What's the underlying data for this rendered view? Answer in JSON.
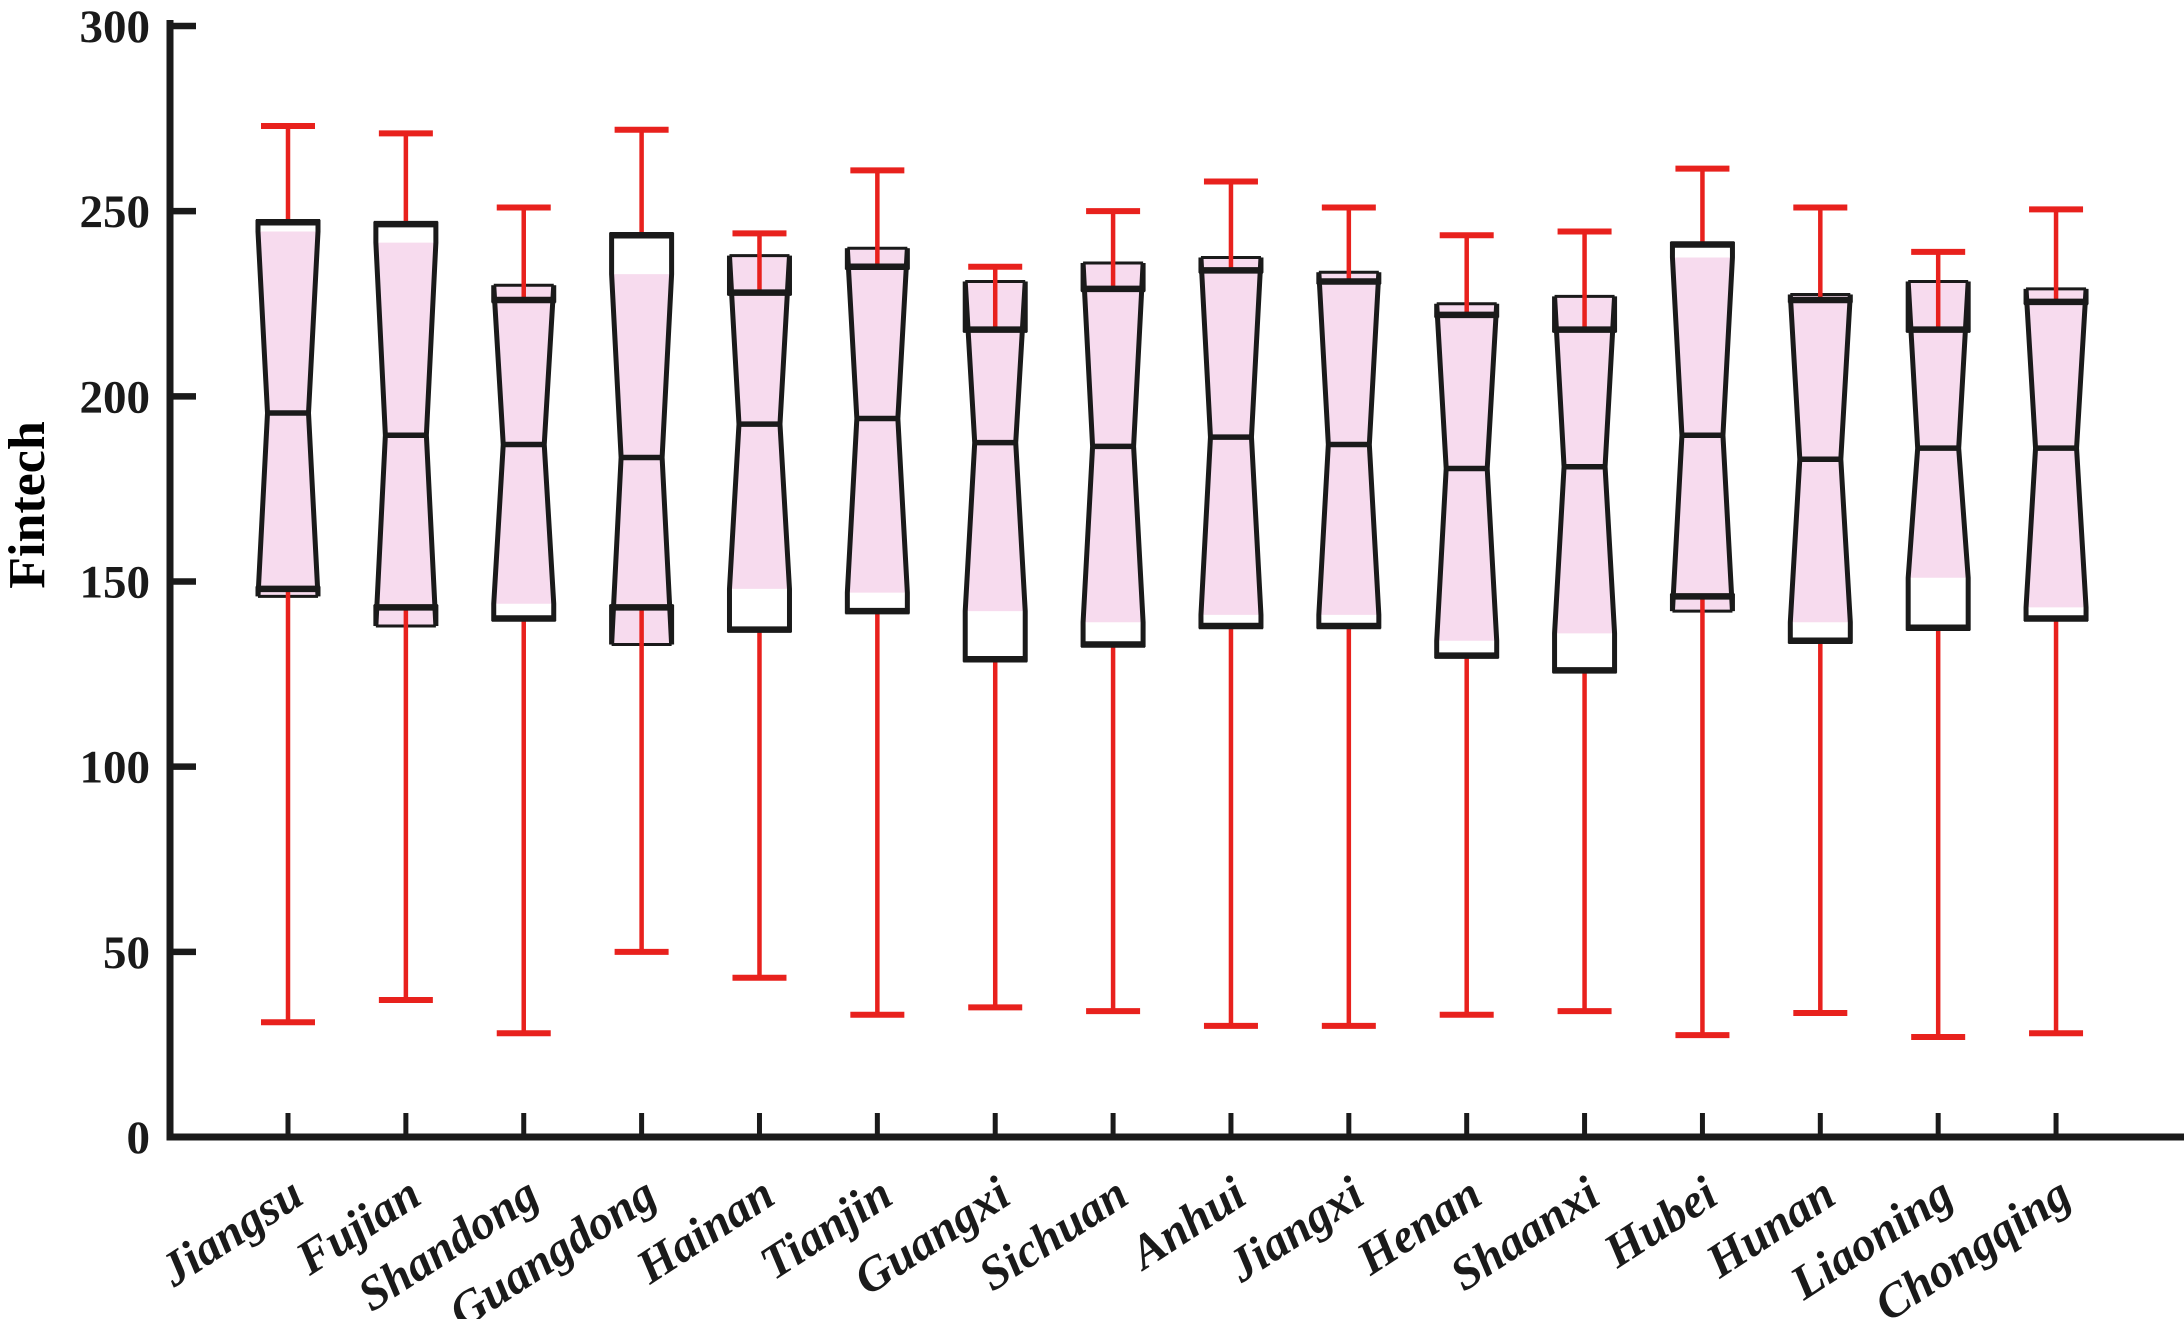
{
  "chart_data": {
    "type": "boxplot",
    "title": "",
    "ylabel": "Fintech",
    "xlabel": "",
    "ylim": [
      0,
      300
    ],
    "yticks": [
      0,
      50,
      100,
      150,
      200,
      250,
      300
    ],
    "grid": false,
    "legend_position": "none",
    "notched": true,
    "categories": [
      "Jiangsu",
      "Fujian",
      "Shandong",
      "Guangdong",
      "Hainan",
      "Tianjin",
      "Guangxi",
      "Sichuan",
      "Anhui",
      "Jiangxi",
      "Henan",
      "Shaanxi",
      "Hubei",
      "Hunan",
      "Liaoning",
      "Chongqing"
    ],
    "series": [
      {
        "name": "Jiangsu",
        "whisker_low": 31,
        "q1": 148,
        "notch_low": 146,
        "median": 195.5,
        "notch_high": 244.5,
        "q3": 247,
        "whisker_high": 273
      },
      {
        "name": "Fujian",
        "whisker_low": 37,
        "q1": 143,
        "notch_low": 138,
        "median": 189.5,
        "notch_high": 241.5,
        "q3": 246.5,
        "whisker_high": 271
      },
      {
        "name": "Shandong",
        "whisker_low": 28,
        "q1": 140,
        "notch_low": 144,
        "median": 187,
        "notch_high": 230,
        "q3": 226,
        "whisker_high": 251
      },
      {
        "name": "Guangdong",
        "whisker_low": 50,
        "q1": 143,
        "notch_low": 133,
        "median": 183.5,
        "notch_high": 233,
        "q3": 243.5,
        "whisker_high": 272
      },
      {
        "name": "Hainan",
        "whisker_low": 43,
        "q1": 137,
        "notch_low": 148,
        "median": 192.5,
        "notch_high": 238,
        "q3": 228,
        "whisker_high": 244
      },
      {
        "name": "Tianjin",
        "whisker_low": 33,
        "q1": 142,
        "notch_low": 147,
        "median": 194,
        "notch_high": 240,
        "q3": 235,
        "whisker_high": 261
      },
      {
        "name": "Guangxi",
        "whisker_low": 35,
        "q1": 129,
        "notch_low": 142,
        "median": 187.5,
        "notch_high": 231,
        "q3": 218,
        "whisker_high": 235
      },
      {
        "name": "Sichuan",
        "whisker_low": 34,
        "q1": 133,
        "notch_low": 139,
        "median": 186.5,
        "notch_high": 236,
        "q3": 229,
        "whisker_high": 250
      },
      {
        "name": "Anhui",
        "whisker_low": 30,
        "q1": 138,
        "notch_low": 141,
        "median": 189,
        "notch_high": 237.5,
        "q3": 234,
        "whisker_high": 258
      },
      {
        "name": "Jiangxi",
        "whisker_low": 30,
        "q1": 138,
        "notch_low": 141,
        "median": 187,
        "notch_high": 233.5,
        "q3": 231,
        "whisker_high": 251
      },
      {
        "name": "Henan",
        "whisker_low": 33,
        "q1": 130,
        "notch_low": 134,
        "median": 180.5,
        "notch_high": 225,
        "q3": 222,
        "whisker_high": 243.5
      },
      {
        "name": "Shaanxi",
        "whisker_low": 34,
        "q1": 126,
        "notch_low": 136,
        "median": 181,
        "notch_high": 227,
        "q3": 218,
        "whisker_high": 244.5
      },
      {
        "name": "Hubei",
        "whisker_low": 27.5,
        "q1": 146,
        "notch_low": 142,
        "median": 189.5,
        "notch_high": 237.5,
        "q3": 241,
        "whisker_high": 261.5
      },
      {
        "name": "Hunan",
        "whisker_low": 33.5,
        "q1": 134,
        "notch_low": 139,
        "median": 183,
        "notch_high": 227.5,
        "q3": 226,
        "whisker_high": 251
      },
      {
        "name": "Liaoning",
        "whisker_low": 27,
        "q1": 137.5,
        "notch_low": 151,
        "median": 186,
        "notch_high": 231,
        "q3": 218,
        "whisker_high": 239
      },
      {
        "name": "Chongqing",
        "whisker_low": 28,
        "q1": 140,
        "notch_low": 143,
        "median": 186,
        "notch_high": 229,
        "q3": 225.5,
        "whisker_high": 250.5
      }
    ],
    "colors": {
      "box_fill": "#f7dbee",
      "box_line": "#1a1a1a",
      "whisker": "#e8211d",
      "text": "#1a1a1a",
      "background": "#ffffff"
    }
  }
}
